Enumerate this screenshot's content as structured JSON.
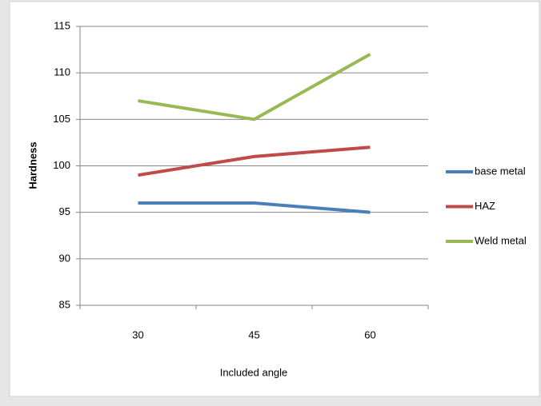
{
  "chart_data": {
    "type": "line",
    "x_label": "Included angle",
    "y_label": "Hardness",
    "categories": [
      "30",
      "45",
      "60"
    ],
    "series": [
      {
        "name": "base metal",
        "color": "#4a7ebb",
        "values": [
          96,
          96,
          95
        ]
      },
      {
        "name": "HAZ",
        "color": "#be4b48",
        "values": [
          99,
          101,
          102
        ]
      },
      {
        "name": "Weld metal",
        "color": "#98b954",
        "values": [
          107,
          105,
          112
        ]
      }
    ],
    "ylim": [
      85,
      115
    ],
    "yticks": [
      85,
      90,
      95,
      100,
      105,
      110,
      115
    ],
    "grid": true,
    "legend": "right"
  }
}
